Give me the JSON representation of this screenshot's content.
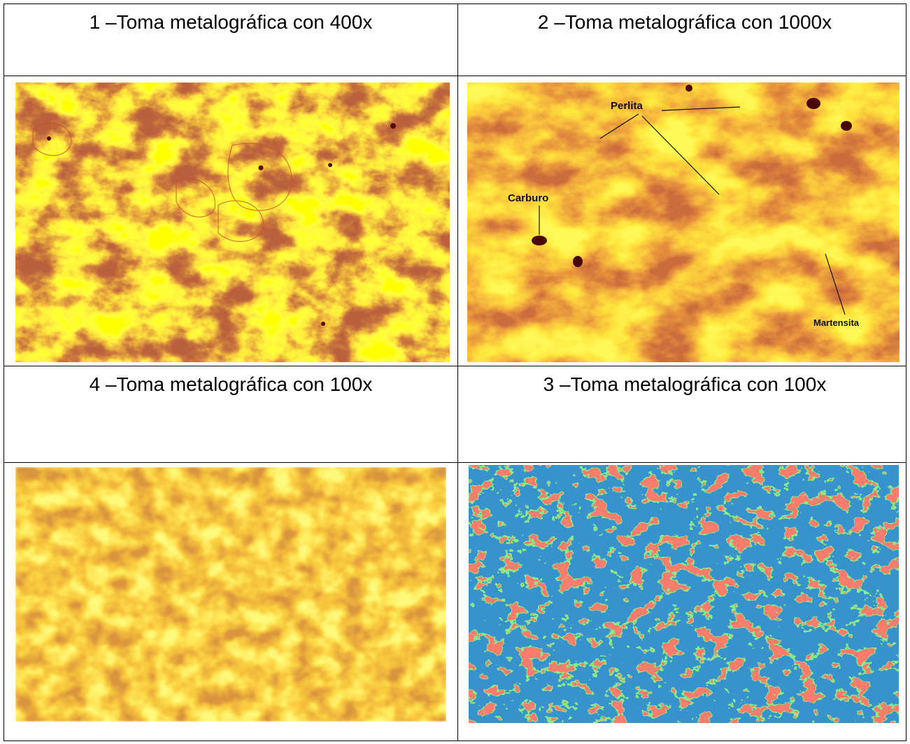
{
  "table": {
    "rows": [
      [
        "1 –Toma metalográfica con 400x",
        "2 –Toma metalográfica con 1000x"
      ],
      [
        "4 –Toma metalográfica con 100x",
        "3 –Toma metalográfica con 100x"
      ]
    ]
  },
  "micrograph_labels": [
    "Perlita",
    "Carburo",
    "Martensita"
  ]
}
